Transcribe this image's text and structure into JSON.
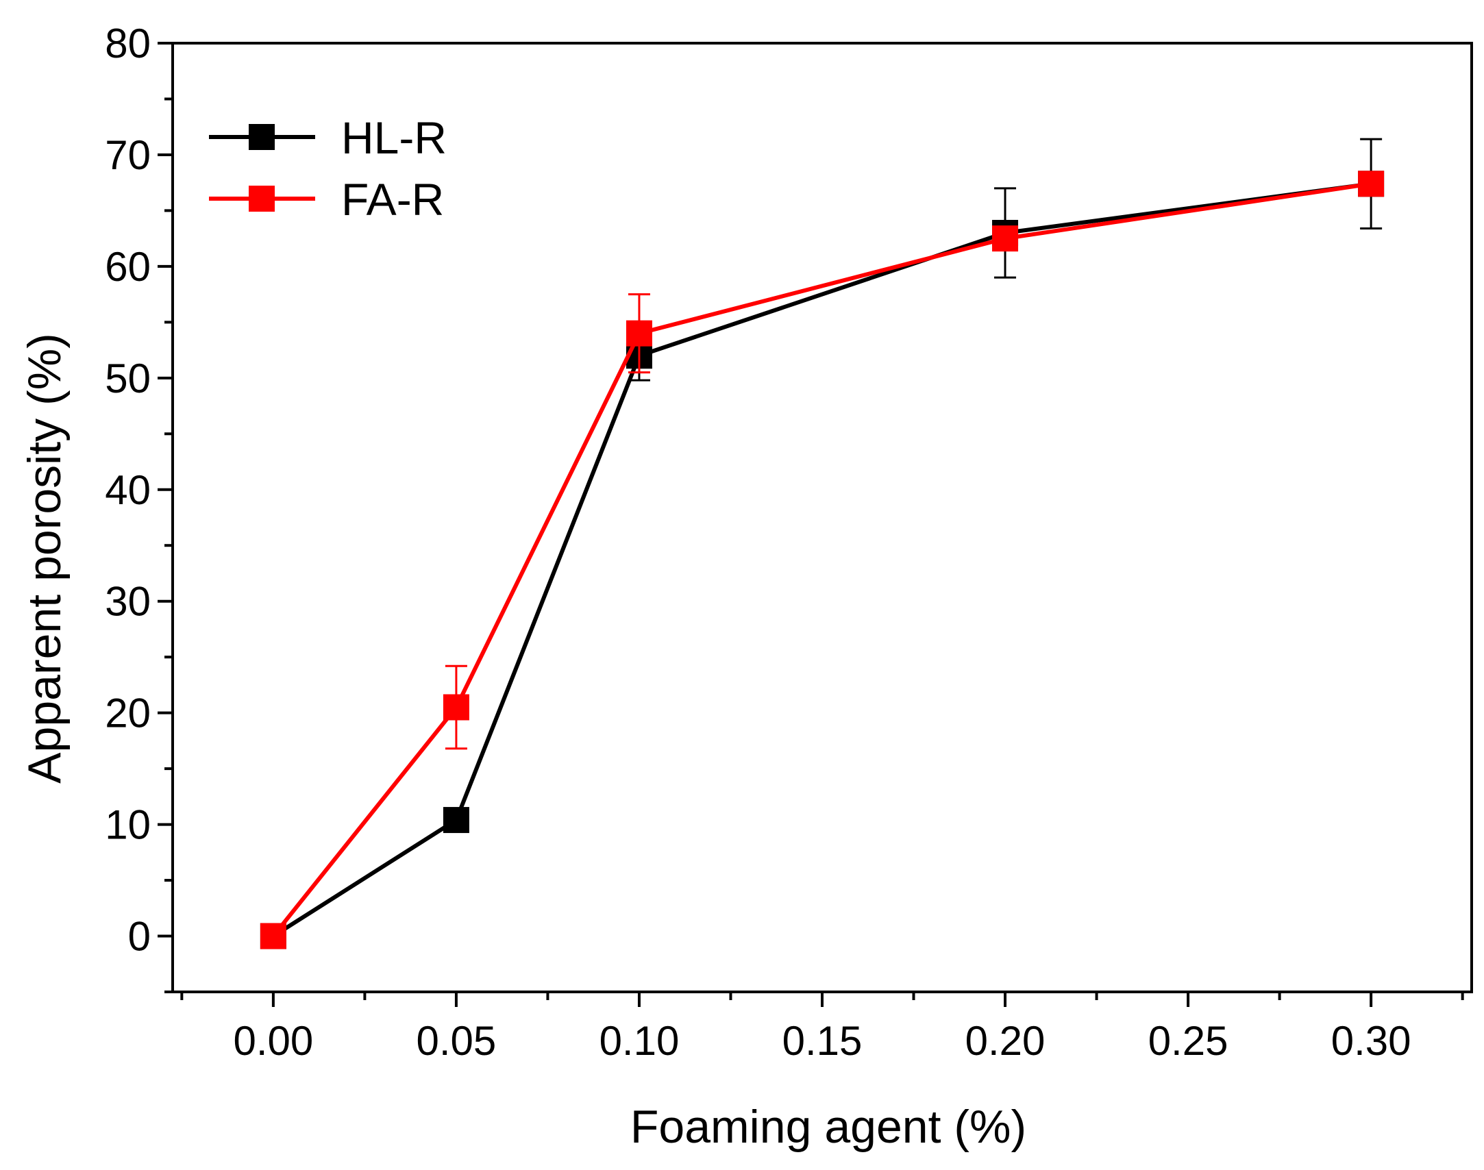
{
  "chart_data": {
    "type": "line",
    "title": "",
    "xlabel": "Foaming agent (%)",
    "ylabel": "Apparent porosity (%)",
    "xlim": [
      -0.0275,
      0.3275
    ],
    "ylim": [
      -5,
      80
    ],
    "x_ticks": [
      "0.00",
      "0.05",
      "0.10",
      "0.15",
      "0.20",
      "0.25",
      "0.30"
    ],
    "y_ticks": [
      "0",
      "10",
      "20",
      "30",
      "40",
      "50",
      "60",
      "70",
      "80"
    ],
    "grid": false,
    "legend_position": "top-left",
    "series": [
      {
        "name": "HL-R",
        "color": "#000000",
        "marker": "square",
        "x": [
          0.0,
          0.05,
          0.1,
          0.2,
          0.3
        ],
        "y": [
          0.0,
          10.4,
          52.0,
          63.0,
          67.4
        ],
        "error": [
          0.0,
          0.0,
          2.2,
          4.0,
          4.0
        ]
      },
      {
        "name": "FA-R",
        "color": "#ff0000",
        "marker": "square",
        "x": [
          0.0,
          0.05,
          0.1,
          0.2,
          0.3
        ],
        "y": [
          0.0,
          20.5,
          54.0,
          62.5,
          67.4
        ],
        "error": [
          0.0,
          3.7,
          3.5,
          0.0,
          0.0
        ]
      }
    ]
  }
}
